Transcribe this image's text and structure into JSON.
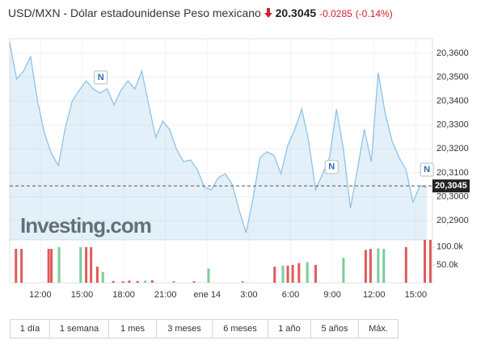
{
  "header": {
    "symbol": "USD/MXN - Dólar estadounidense Peso mexicano",
    "price": "20.3045",
    "change": "-0.0285",
    "change_pct": "(-0.14%)"
  },
  "chart_data": {
    "type": "line",
    "color": "#8ec3e6",
    "watermark": "Investing.com",
    "values": [
      20.3647,
      20.3492,
      20.3526,
      20.3586,
      20.3401,
      20.3265,
      20.3181,
      20.313,
      20.3289,
      20.3401,
      20.3445,
      20.3485,
      20.3451,
      20.3434,
      20.3451,
      20.3384,
      20.3445,
      20.3485,
      20.3451,
      20.3526,
      20.3384,
      20.3248,
      20.3316,
      20.3282,
      20.3198,
      20.3147,
      20.3154,
      20.3113,
      20.3039,
      20.3029,
      20.3079,
      20.3096,
      20.3052,
      20.2944,
      20.2849,
      20.2995,
      20.3164,
      20.3188,
      20.3174,
      20.3096,
      20.3215,
      20.3282,
      20.3367,
      20.3232,
      20.3029,
      20.3096,
      20.3164,
      20.3367,
      20.3198,
      20.2951,
      20.3113,
      20.3282,
      20.3147,
      20.3519,
      20.335,
      20.3232,
      20.3164,
      20.3113,
      20.2978,
      20.3046,
      20.3039
    ],
    "xlim": [
      0,
      60.8
    ],
    "xticks": [
      {
        "value": 4.4,
        "label": "12:00"
      },
      {
        "value": 10.4,
        "label": "15:00"
      },
      {
        "value": 16.4,
        "label": "18:00"
      },
      {
        "value": 22.4,
        "label": "21:00"
      },
      {
        "value": 28.4,
        "label": "ene 14"
      },
      {
        "value": 34.4,
        "label": "3:00"
      },
      {
        "value": 40.4,
        "label": "6:00"
      },
      {
        "value": 46.4,
        "label": "9:00"
      },
      {
        "value": 52.4,
        "label": "12:00"
      },
      {
        "value": 58.4,
        "label": "15:00"
      }
    ],
    "ylim": [
      20.2819,
      20.3661
    ],
    "yticks": [
      {
        "value": 20.29,
        "label": "20,2900"
      },
      {
        "value": 20.3,
        "label": "20,3000"
      },
      {
        "value": 20.31,
        "label": "20,3100"
      },
      {
        "value": 20.32,
        "label": "20,3200"
      },
      {
        "value": 20.33,
        "label": "20,3300"
      },
      {
        "value": 20.34,
        "label": "20,3400"
      },
      {
        "value": 20.35,
        "label": "20,3500"
      },
      {
        "value": 20.36,
        "label": "20,3600"
      }
    ],
    "last": {
      "value": 20.3045,
      "label": "20,3045"
    },
    "annotations": [
      {
        "text": "N",
        "x": 13.1,
        "y": 20.3499
      },
      {
        "text": "N",
        "x": 46.3,
        "y": 20.3124
      },
      {
        "text": "N",
        "x": 60.0,
        "y": 20.3113
      }
    ],
    "volume": {
      "x": [
        0.9,
        1.7,
        5.6,
        6.0,
        7.1,
        10.2,
        11.0,
        11.7,
        12.6,
        13.4,
        14.9,
        16.3,
        17.2,
        18.4,
        19.5,
        20.5,
        23.6,
        26.5,
        28.6,
        33.5,
        38.1,
        39.3,
        40.0,
        40.7,
        41.6,
        42.8,
        44.0,
        48.0,
        51.2,
        51.9,
        53.0,
        53.8,
        57.0,
        59.7,
        60.5
      ],
      "values": [
        95000,
        95000,
        95000,
        95000,
        100000,
        100000,
        100000,
        100000,
        45000,
        30000,
        5000,
        4000,
        6000,
        5000,
        6000,
        7000,
        5000,
        4000,
        40000,
        5000,
        45000,
        48000,
        48000,
        50000,
        55000,
        58000,
        50000,
        70000,
        92000,
        95000,
        96000,
        95000,
        100000,
        120000,
        120000
      ],
      "colors": [
        "#e05a5a",
        "#e05a5a",
        "#e05a5a",
        "#e05a5a",
        "#7ccc9a",
        "#7ccc9a",
        "#e05a5a",
        "#e05a5a",
        "#e05a5a",
        "#7ccc9a",
        "#e05a5a",
        "#e05a5a",
        "#e05a5a",
        "#e05a5a",
        "#7ccc9a",
        "#e05a5a",
        "#7ccc9a",
        "#e05a5a",
        "#7ccc9a",
        "#7ccc9a",
        "#e05a5a",
        "#7ccc9a",
        "#e05a5a",
        "#e05a5a",
        "#e05a5a",
        "#7ccc9a",
        "#e05a5a",
        "#7ccc9a",
        "#e05a5a",
        "#e05a5a",
        "#7ccc9a",
        "#7ccc9a",
        "#e05a5a",
        "#e05a5a",
        "#e05a5a"
      ],
      "y2lim": [
        0,
        120000
      ],
      "y2ticks": [
        {
          "value": 50000,
          "label": "50.0k"
        },
        {
          "value": 100000,
          "label": "100.0k"
        }
      ]
    }
  },
  "ranges": [
    "1 día",
    "1 semana",
    "1 mes",
    "3 meses",
    "6 meses",
    "1 año",
    "5 años",
    "Máx."
  ]
}
